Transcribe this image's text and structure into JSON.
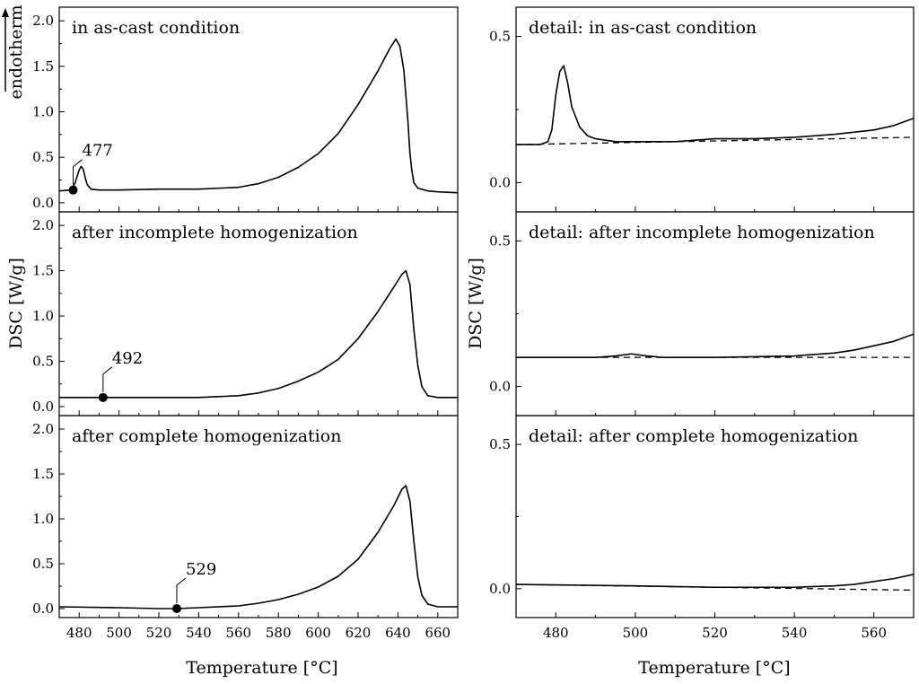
{
  "chart_data": [
    {
      "type": "line",
      "title": "in as-cast condition",
      "ylabel": "DSC [W/g]",
      "xlabel": "Temperature [°C]",
      "xlim": [
        470,
        670
      ],
      "ylim": [
        -0.1,
        2.15
      ],
      "yticks": [
        0.0,
        0.5,
        1.0,
        1.5,
        2.0
      ],
      "ytick_labels": [
        "0.0",
        "0.5",
        "1.0",
        "1.5",
        "2.0"
      ],
      "xticks": [
        480,
        500,
        520,
        540,
        560,
        580,
        600,
        620,
        640,
        660
      ],
      "xtick_labels": [
        "480",
        "500",
        "520",
        "540",
        "560",
        "580",
        "600",
        "620",
        "640",
        "660"
      ],
      "endotherm_label": "endotherm",
      "series": [
        {
          "name": "DSC",
          "x": [
            470,
            476,
            478,
            480,
            481,
            482,
            483,
            484,
            486,
            490,
            500,
            520,
            540,
            560,
            570,
            580,
            590,
            600,
            610,
            620,
            630,
            636,
            639,
            641,
            643,
            645,
            646,
            647,
            648,
            650,
            655,
            660,
            670
          ],
          "y": [
            0.13,
            0.14,
            0.22,
            0.36,
            0.4,
            0.37,
            0.28,
            0.2,
            0.15,
            0.14,
            0.14,
            0.15,
            0.15,
            0.17,
            0.21,
            0.28,
            0.39,
            0.54,
            0.76,
            1.08,
            1.45,
            1.7,
            1.8,
            1.72,
            1.45,
            0.9,
            0.55,
            0.35,
            0.22,
            0.16,
            0.13,
            0.12,
            0.11
          ]
        }
      ],
      "marker": {
        "x": 477,
        "y": 0.14,
        "label": "477"
      }
    },
    {
      "type": "line",
      "title": "after incomplete homogenization",
      "ylabel": "DSC [W/g]",
      "xlim": [
        470,
        670
      ],
      "ylim": [
        -0.1,
        2.15
      ],
      "yticks": [
        0.0,
        0.5,
        1.0,
        1.5,
        2.0
      ],
      "ytick_labels": [
        "0.0",
        "0.5",
        "1.0",
        "1.5",
        "2.0"
      ],
      "series": [
        {
          "name": "DSC",
          "x": [
            470,
            490,
            500,
            520,
            540,
            560,
            570,
            580,
            590,
            600,
            610,
            620,
            630,
            638,
            642,
            644,
            646,
            648,
            650,
            652,
            655,
            660,
            670
          ],
          "y": [
            0.1,
            0.1,
            0.1,
            0.1,
            0.1,
            0.12,
            0.15,
            0.2,
            0.28,
            0.38,
            0.52,
            0.75,
            1.05,
            1.32,
            1.46,
            1.5,
            1.35,
            0.85,
            0.45,
            0.22,
            0.12,
            0.1,
            0.1
          ]
        }
      ],
      "marker": {
        "x": 492,
        "y": 0.1,
        "label": "492"
      }
    },
    {
      "type": "line",
      "title": "after complete homogenization",
      "ylabel": "DSC [W/g]",
      "xlim": [
        470,
        670
      ],
      "ylim": [
        -0.1,
        2.15
      ],
      "yticks": [
        0.0,
        0.5,
        1.0,
        1.5,
        2.0
      ],
      "ytick_labels": [
        "0.0",
        "0.5",
        "1.0",
        "1.5",
        "2.0"
      ],
      "series": [
        {
          "name": "DSC",
          "x": [
            470,
            500,
            520,
            529,
            540,
            560,
            570,
            580,
            590,
            600,
            610,
            620,
            630,
            638,
            642,
            644,
            646,
            648,
            650,
            652,
            655,
            660,
            670
          ],
          "y": [
            0.02,
            0.01,
            0.0,
            0.0,
            0.01,
            0.03,
            0.06,
            0.1,
            0.16,
            0.24,
            0.36,
            0.55,
            0.85,
            1.15,
            1.33,
            1.37,
            1.2,
            0.75,
            0.35,
            0.15,
            0.05,
            0.02,
            0.02
          ]
        }
      ],
      "marker": {
        "x": 529,
        "y": 0.0,
        "label": "529"
      }
    },
    {
      "type": "line",
      "title": "detail: in as-cast condition",
      "ylabel": "DSC [W/g]",
      "xlabel": "Temperature [°C]",
      "xlim": [
        470,
        570
      ],
      "ylim": [
        -0.1,
        0.6
      ],
      "yticks": [
        0.0,
        0.5
      ],
      "ytick_labels": [
        "0.0",
        "0.5"
      ],
      "xticks": [
        480,
        500,
        520,
        540,
        560
      ],
      "xtick_labels": [
        "480",
        "500",
        "520",
        "540",
        "560"
      ],
      "series": [
        {
          "name": "DSC",
          "x": [
            470,
            476,
            478,
            479,
            480,
            481,
            482,
            483,
            484,
            486,
            488,
            490,
            495,
            500,
            510,
            520,
            530,
            540,
            550,
            560,
            565,
            570
          ],
          "y": [
            0.13,
            0.13,
            0.14,
            0.18,
            0.3,
            0.38,
            0.4,
            0.34,
            0.26,
            0.19,
            0.16,
            0.15,
            0.14,
            0.14,
            0.14,
            0.15,
            0.15,
            0.155,
            0.165,
            0.18,
            0.195,
            0.22
          ]
        },
        {
          "name": "baseline",
          "style": "dashed",
          "x": [
            470,
            570
          ],
          "y": [
            0.13,
            0.155
          ]
        }
      ]
    },
    {
      "type": "line",
      "title": "detail: after incomplete homogenization",
      "ylabel": "DSC [W/g]",
      "xlim": [
        470,
        570
      ],
      "ylim": [
        -0.1,
        0.6
      ],
      "yticks": [
        0.0,
        0.5
      ],
      "ytick_labels": [
        "0.0",
        "0.5"
      ],
      "series": [
        {
          "name": "DSC",
          "x": [
            470,
            490,
            495,
            499,
            503,
            507,
            520,
            540,
            550,
            555,
            560,
            565,
            570
          ],
          "y": [
            0.1,
            0.1,
            0.105,
            0.112,
            0.105,
            0.1,
            0.1,
            0.105,
            0.115,
            0.125,
            0.14,
            0.155,
            0.18
          ]
        },
        {
          "name": "baseline",
          "style": "dashed",
          "x": [
            470,
            570
          ],
          "y": [
            0.1,
            0.1
          ]
        }
      ]
    },
    {
      "type": "line",
      "title": "detail: after complete homogenization",
      "ylabel": "DSC [W/g]",
      "xlim": [
        470,
        570
      ],
      "ylim": [
        -0.1,
        0.6
      ],
      "yticks": [
        0.0,
        0.5
      ],
      "ytick_labels": [
        "0.0",
        "0.5"
      ],
      "series": [
        {
          "name": "DSC",
          "x": [
            470,
            500,
            520,
            540,
            550,
            555,
            560,
            565,
            570
          ],
          "y": [
            0.015,
            0.01,
            0.005,
            0.005,
            0.01,
            0.015,
            0.025,
            0.035,
            0.05
          ]
        },
        {
          "name": "baseline",
          "style": "dashed",
          "x": [
            470,
            570
          ],
          "y": [
            0.015,
            -0.005
          ]
        }
      ]
    }
  ]
}
